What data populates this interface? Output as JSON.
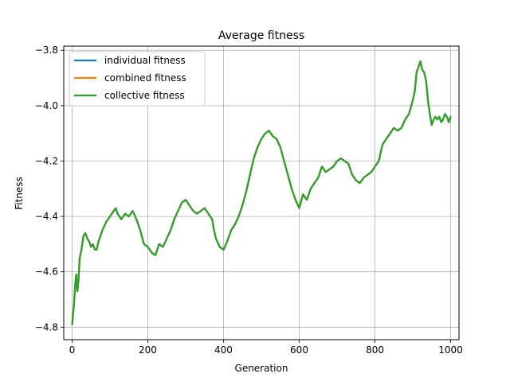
{
  "chart_data": {
    "type": "line",
    "title": "Average fitness",
    "xlabel": "Generation",
    "ylabel": "Fitness",
    "xlim": [
      -22,
      1022
    ],
    "ylim": [
      -4.845,
      -3.785
    ],
    "xticks": [
      0,
      200,
      400,
      600,
      800,
      1000
    ],
    "xtick_labels": [
      "0",
      "200",
      "400",
      "600",
      "800",
      "1000"
    ],
    "yticks": [
      -4.8,
      -4.6,
      -4.4,
      -4.2,
      -4.0,
      -3.8
    ],
    "ytick_labels": [
      "−4.8",
      "−4.6",
      "−4.4",
      "−4.2",
      "−4.0",
      "−3.8"
    ],
    "grid": true,
    "legend_position": "top-left",
    "series": [
      {
        "name": "individual fitness",
        "color": "#1f77b4",
        "x": [
          0,
          5,
          8,
          11,
          14,
          17,
          20,
          25,
          30,
          35,
          40,
          45,
          50,
          55,
          60,
          65,
          70,
          75,
          80,
          90,
          100,
          110,
          115,
          120,
          130,
          140,
          150,
          160,
          170,
          175,
          180,
          190,
          200,
          210,
          220,
          225,
          230,
          240,
          250,
          260,
          270,
          280,
          290,
          300,
          310,
          320,
          330,
          340,
          350,
          360,
          370,
          375,
          380,
          390,
          400,
          410,
          420,
          430,
          440,
          450,
          460,
          470,
          480,
          490,
          500,
          510,
          520,
          525,
          530,
          540,
          550,
          560,
          570,
          580,
          590,
          600,
          610,
          620,
          630,
          640,
          650,
          660,
          670,
          680,
          690,
          700,
          710,
          720,
          730,
          740,
          750,
          760,
          770,
          780,
          790,
          800,
          810,
          820,
          830,
          840,
          850,
          860,
          870,
          880,
          890,
          900,
          905,
          910,
          915,
          920,
          925,
          930,
          935,
          940,
          945,
          950,
          955,
          960,
          965,
          970,
          975,
          980,
          985,
          990,
          995,
          1000
        ],
        "y": [
          -4.79,
          -4.72,
          -4.65,
          -4.61,
          -4.67,
          -4.63,
          -4.55,
          -4.52,
          -4.47,
          -4.46,
          -4.48,
          -4.49,
          -4.51,
          -4.5,
          -4.52,
          -4.52,
          -4.49,
          -4.47,
          -4.45,
          -4.42,
          -4.4,
          -4.38,
          -4.37,
          -4.39,
          -4.41,
          -4.39,
          -4.4,
          -4.38,
          -4.41,
          -4.43,
          -4.45,
          -4.5,
          -4.51,
          -4.53,
          -4.54,
          -4.52,
          -4.5,
          -4.51,
          -4.48,
          -4.45,
          -4.41,
          -4.38,
          -4.35,
          -4.34,
          -4.36,
          -4.38,
          -4.39,
          -4.38,
          -4.37,
          -4.39,
          -4.41,
          -4.45,
          -4.48,
          -4.51,
          -4.52,
          -4.49,
          -4.45,
          -4.43,
          -4.4,
          -4.36,
          -4.31,
          -4.25,
          -4.19,
          -4.15,
          -4.12,
          -4.1,
          -4.09,
          -4.1,
          -4.11,
          -4.12,
          -4.15,
          -4.2,
          -4.25,
          -4.3,
          -4.34,
          -4.37,
          -4.32,
          -4.34,
          -4.3,
          -4.28,
          -4.26,
          -4.22,
          -4.24,
          -4.23,
          -4.22,
          -4.2,
          -4.19,
          -4.2,
          -4.21,
          -4.25,
          -4.27,
          -4.28,
          -4.26,
          -4.25,
          -4.24,
          -4.22,
          -4.2,
          -4.14,
          -4.12,
          -4.1,
          -4.08,
          -4.09,
          -4.08,
          -4.05,
          -4.03,
          -3.98,
          -3.95,
          -3.88,
          -3.86,
          -3.84,
          -3.87,
          -3.88,
          -3.91,
          -3.98,
          -4.03,
          -4.07,
          -4.05,
          -4.04,
          -4.05,
          -4.04,
          -4.06,
          -4.05,
          -4.03,
          -4.04,
          -4.06,
          -4.04
        ]
      },
      {
        "name": "combined fitness",
        "color": "#ff7f0e",
        "x": [
          0,
          5,
          8,
          11,
          14,
          17,
          20,
          25,
          30,
          35,
          40,
          45,
          50,
          55,
          60,
          65,
          70,
          75,
          80,
          90,
          100,
          110,
          115,
          120,
          130,
          140,
          150,
          160,
          170,
          175,
          180,
          190,
          200,
          210,
          220,
          225,
          230,
          240,
          250,
          260,
          270,
          280,
          290,
          300,
          310,
          320,
          330,
          340,
          350,
          360,
          370,
          375,
          380,
          390,
          400,
          410,
          420,
          430,
          440,
          450,
          460,
          470,
          480,
          490,
          500,
          510,
          520,
          525,
          530,
          540,
          550,
          560,
          570,
          580,
          590,
          600,
          610,
          620,
          630,
          640,
          650,
          660,
          670,
          680,
          690,
          700,
          710,
          720,
          730,
          740,
          750,
          760,
          770,
          780,
          790,
          800,
          810,
          820,
          830,
          840,
          850,
          860,
          870,
          880,
          890,
          900,
          905,
          910,
          915,
          920,
          925,
          930,
          935,
          940,
          945,
          950,
          955,
          960,
          965,
          970,
          975,
          980,
          985,
          990,
          995,
          1000
        ],
        "y": [
          -4.79,
          -4.72,
          -4.65,
          -4.61,
          -4.67,
          -4.63,
          -4.55,
          -4.52,
          -4.47,
          -4.46,
          -4.48,
          -4.49,
          -4.51,
          -4.5,
          -4.52,
          -4.52,
          -4.49,
          -4.47,
          -4.45,
          -4.42,
          -4.4,
          -4.38,
          -4.37,
          -4.39,
          -4.41,
          -4.39,
          -4.4,
          -4.38,
          -4.41,
          -4.43,
          -4.45,
          -4.5,
          -4.51,
          -4.53,
          -4.54,
          -4.52,
          -4.5,
          -4.51,
          -4.48,
          -4.45,
          -4.41,
          -4.38,
          -4.35,
          -4.34,
          -4.36,
          -4.38,
          -4.39,
          -4.38,
          -4.37,
          -4.39,
          -4.41,
          -4.45,
          -4.48,
          -4.51,
          -4.52,
          -4.49,
          -4.45,
          -4.43,
          -4.4,
          -4.36,
          -4.31,
          -4.25,
          -4.19,
          -4.15,
          -4.12,
          -4.1,
          -4.09,
          -4.1,
          -4.11,
          -4.12,
          -4.15,
          -4.2,
          -4.25,
          -4.3,
          -4.34,
          -4.37,
          -4.32,
          -4.34,
          -4.3,
          -4.28,
          -4.26,
          -4.22,
          -4.24,
          -4.23,
          -4.22,
          -4.2,
          -4.19,
          -4.2,
          -4.21,
          -4.25,
          -4.27,
          -4.28,
          -4.26,
          -4.25,
          -4.24,
          -4.22,
          -4.2,
          -4.14,
          -4.12,
          -4.1,
          -4.08,
          -4.09,
          -4.08,
          -4.05,
          -4.03,
          -3.98,
          -3.95,
          -3.88,
          -3.86,
          -3.84,
          -3.87,
          -3.88,
          -3.91,
          -3.98,
          -4.03,
          -4.07,
          -4.05,
          -4.04,
          -4.05,
          -4.04,
          -4.06,
          -4.05,
          -4.03,
          -4.04,
          -4.06,
          -4.04
        ]
      },
      {
        "name": "collective fitness",
        "color": "#2ca02c",
        "x": [
          0,
          5,
          8,
          11,
          14,
          17,
          20,
          25,
          30,
          35,
          40,
          45,
          50,
          55,
          60,
          65,
          70,
          75,
          80,
          90,
          100,
          110,
          115,
          120,
          130,
          140,
          150,
          160,
          170,
          175,
          180,
          190,
          200,
          210,
          220,
          225,
          230,
          240,
          250,
          260,
          270,
          280,
          290,
          300,
          310,
          320,
          330,
          340,
          350,
          360,
          370,
          375,
          380,
          390,
          400,
          410,
          420,
          430,
          440,
          450,
          460,
          470,
          480,
          490,
          500,
          510,
          520,
          525,
          530,
          540,
          550,
          560,
          570,
          580,
          590,
          600,
          610,
          620,
          630,
          640,
          650,
          660,
          670,
          680,
          690,
          700,
          710,
          720,
          730,
          740,
          750,
          760,
          770,
          780,
          790,
          800,
          810,
          820,
          830,
          840,
          850,
          860,
          870,
          880,
          890,
          900,
          905,
          910,
          915,
          920,
          925,
          930,
          935,
          940,
          945,
          950,
          955,
          960,
          965,
          970,
          975,
          980,
          985,
          990,
          995,
          1000
        ],
        "y": [
          -4.79,
          -4.72,
          -4.65,
          -4.61,
          -4.67,
          -4.63,
          -4.55,
          -4.52,
          -4.47,
          -4.46,
          -4.48,
          -4.49,
          -4.51,
          -4.5,
          -4.52,
          -4.52,
          -4.49,
          -4.47,
          -4.45,
          -4.42,
          -4.4,
          -4.38,
          -4.37,
          -4.39,
          -4.41,
          -4.39,
          -4.4,
          -4.38,
          -4.41,
          -4.43,
          -4.45,
          -4.5,
          -4.51,
          -4.53,
          -4.54,
          -4.52,
          -4.5,
          -4.51,
          -4.48,
          -4.45,
          -4.41,
          -4.38,
          -4.35,
          -4.34,
          -4.36,
          -4.38,
          -4.39,
          -4.38,
          -4.37,
          -4.39,
          -4.41,
          -4.45,
          -4.48,
          -4.51,
          -4.52,
          -4.49,
          -4.45,
          -4.43,
          -4.4,
          -4.36,
          -4.31,
          -4.25,
          -4.19,
          -4.15,
          -4.12,
          -4.1,
          -4.09,
          -4.1,
          -4.11,
          -4.12,
          -4.15,
          -4.2,
          -4.25,
          -4.3,
          -4.34,
          -4.37,
          -4.32,
          -4.34,
          -4.3,
          -4.28,
          -4.26,
          -4.22,
          -4.24,
          -4.23,
          -4.22,
          -4.2,
          -4.19,
          -4.2,
          -4.21,
          -4.25,
          -4.27,
          -4.28,
          -4.26,
          -4.25,
          -4.24,
          -4.22,
          -4.2,
          -4.14,
          -4.12,
          -4.1,
          -4.08,
          -4.09,
          -4.08,
          -4.05,
          -4.03,
          -3.98,
          -3.95,
          -3.88,
          -3.86,
          -3.84,
          -3.87,
          -3.88,
          -3.91,
          -3.98,
          -4.03,
          -4.07,
          -4.05,
          -4.04,
          -4.05,
          -4.04,
          -4.06,
          -4.05,
          -4.03,
          -4.04,
          -4.06,
          -4.04
        ]
      }
    ]
  }
}
